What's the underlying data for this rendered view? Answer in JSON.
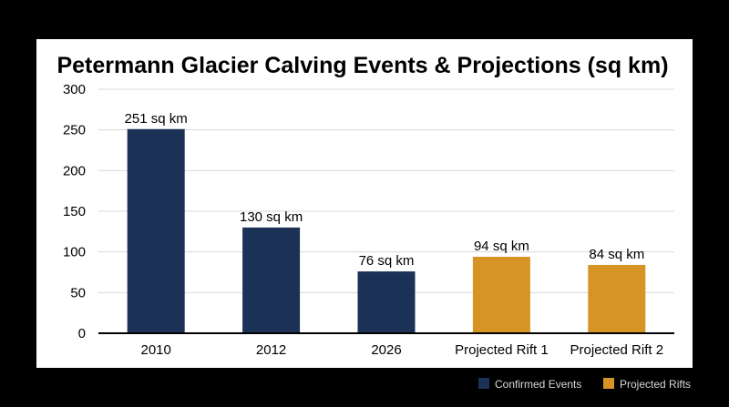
{
  "chart_data": {
    "type": "bar",
    "title": "Petermann Glacier Calving Events & Projections (sq km)",
    "xlabel": "",
    "ylabel": "",
    "categories": [
      "2010",
      "2012",
      "2026",
      "Projected Rift 1",
      "Projected Rift 2"
    ],
    "values": [
      251,
      130,
      76,
      94,
      84
    ],
    "data_labels": [
      "251 sq km",
      "130 sq km",
      "76 sq km",
      "94 sq km",
      "84 sq km"
    ],
    "groups": [
      "Confirmed Events",
      "Confirmed Events",
      "Confirmed Events",
      "Projected Rifts",
      "Projected Rifts"
    ],
    "ylim": [
      0,
      300
    ],
    "yticks": [
      "0",
      "50",
      "100",
      "150",
      "200",
      "250",
      "300"
    ],
    "grid": true,
    "legend": {
      "placement": "bottom-right",
      "entries": [
        {
          "name": "Confirmed Events",
          "color": "#1b3155"
        },
        {
          "name": "Projected Rifts",
          "color": "#d69424"
        }
      ]
    }
  }
}
